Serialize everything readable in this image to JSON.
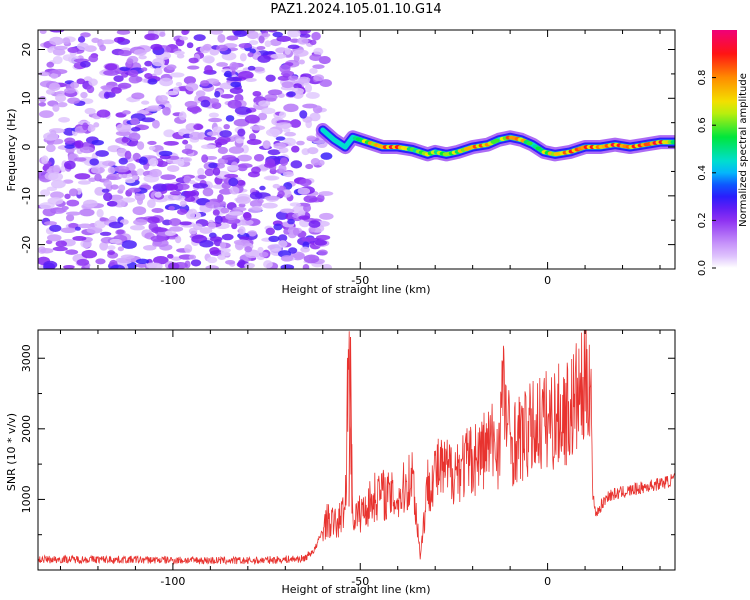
{
  "title": "PAZ1.2024.105.01.10.G14",
  "chart_data": [
    {
      "type": "heatmap",
      "xlabel": "Height of straight line (km)",
      "ylabel": "Frequency (Hz)",
      "xlim": [
        -136,
        34
      ],
      "ylim": [
        -25,
        24
      ],
      "xticks": [
        -100,
        -50,
        0
      ],
      "yticks": [
        -20,
        -10,
        0,
        10,
        20
      ],
      "colorbar": {
        "label": "Normalized spectral amplitude",
        "range": [
          0.0,
          1.0
        ],
        "ticks": [
          0.0,
          0.2,
          0.4,
          0.6,
          0.8
        ],
        "colormap": "rainbow (magenta-purple-blue-cyan-green-yellow-orange-red-pink)"
      },
      "ridge": {
        "x": [
          -60,
          -57,
          -54,
          -52,
          -48,
          -44,
          -40,
          -36,
          -32,
          -30,
          -27,
          -24,
          -20,
          -16,
          -13,
          -10,
          -7,
          -4,
          -1,
          2,
          6,
          10,
          14,
          18,
          22,
          26,
          30,
          34
        ],
        "y": [
          3.5,
          1.5,
          0,
          2,
          1,
          0,
          0,
          -0.5,
          -1.5,
          -1,
          -1.5,
          -1,
          0,
          0.5,
          1.5,
          2,
          1.5,
          0.5,
          -1,
          -1.5,
          -1,
          0,
          0,
          0.5,
          0,
          0.5,
          1,
          1
        ],
        "amplitude": [
          0.3,
          0.35,
          0.3,
          0.5,
          0.75,
          0.9,
          0.95,
          0.6,
          0.75,
          0.65,
          0.7,
          0.7,
          0.9,
          0.85,
          0.55,
          0.95,
          0.85,
          0.5,
          0.7,
          0.8,
          0.9,
          0.95,
          0.85,
          0.95,
          0.9,
          0.95,
          0.95,
          0.6
        ]
      },
      "noise_region": {
        "x": [
          -136,
          -60
        ],
        "amplitude": [
          0.0,
          0.25
        ]
      }
    },
    {
      "type": "line",
      "xlabel": "Height of straight line (km)",
      "ylabel": "SNR (10 * v/v)",
      "xlim": [
        -136,
        34
      ],
      "ylim": [
        0,
        3400
      ],
      "xticks": [
        -100,
        -50,
        0
      ],
      "yticks": [
        1000,
        2000,
        3000
      ],
      "color": "#e8332f",
      "series": [
        {
          "x": [
            -136,
            -120,
            -100,
            -80,
            -65,
            -62,
            -59,
            -56,
            -54,
            -53,
            -52,
            -50,
            -45,
            -40,
            -36,
            -34,
            -32,
            -30,
            -26,
            -22,
            -18,
            -15,
            -13,
            -12,
            -10,
            -6,
            -2,
            2,
            6,
            8,
            10,
            11,
            11.5,
            12,
            13,
            16,
            20,
            24,
            28,
            32,
            34
          ],
          "y": [
            150,
            150,
            140,
            130,
            160,
            300,
            700,
            650,
            900,
            3300,
            750,
            800,
            1100,
            1000,
            1350,
            200,
            1200,
            1400,
            1400,
            1500,
            1650,
            1800,
            1750,
            2600,
            1800,
            1900,
            2100,
            2150,
            2250,
            2450,
            2550,
            2800,
            2900,
            1050,
            800,
            1050,
            1100,
            1150,
            1200,
            1250,
            1300
          ]
        }
      ]
    }
  ]
}
